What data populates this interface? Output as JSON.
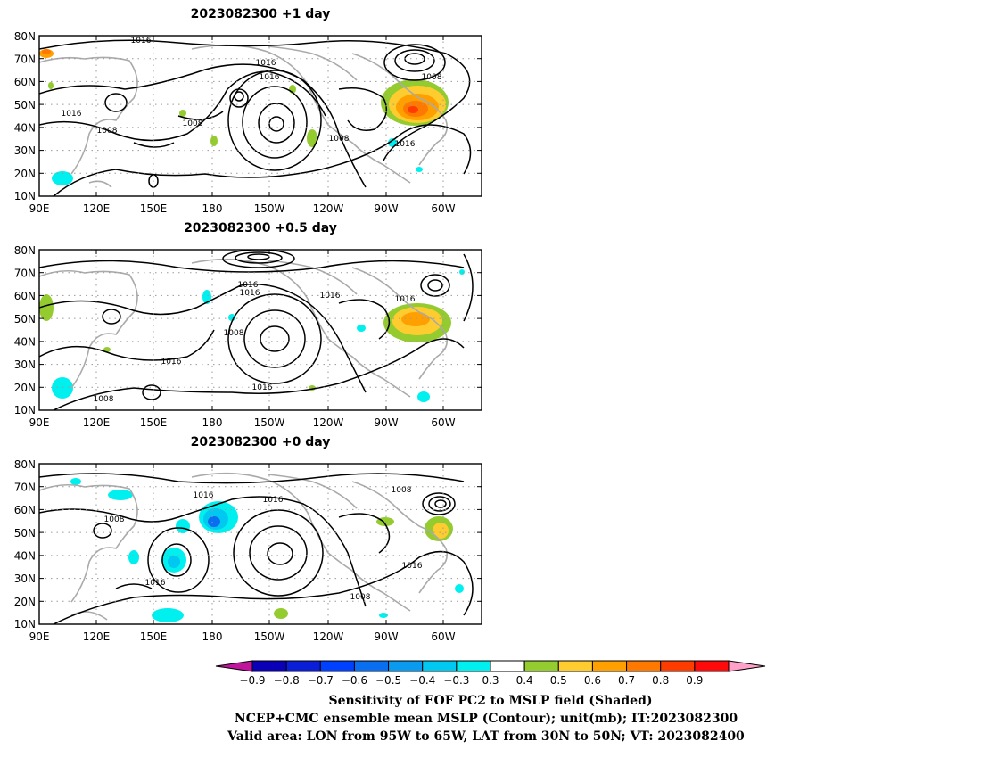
{
  "panels": [
    {
      "title": "2023082300  +1 day",
      "lat_ticks": [
        "80N",
        "70N",
        "60N",
        "50N",
        "40N",
        "30N",
        "20N",
        "10N"
      ],
      "lon_ticks": [
        "90E",
        "120E",
        "150E",
        "180",
        "150W",
        "120W",
        "90W",
        "60W"
      ],
      "contour_labels": [
        "1016",
        "1016",
        "1016",
        "1016",
        "1008",
        "1008",
        "1008",
        "1008",
        "1016"
      ]
    },
    {
      "title": "2023082300  +0.5 day",
      "lat_ticks": [
        "80N",
        "70N",
        "60N",
        "50N",
        "40N",
        "30N",
        "20N",
        "10N"
      ],
      "lon_ticks": [
        "90E",
        "120E",
        "150E",
        "180",
        "150W",
        "120W",
        "90W",
        "60W"
      ],
      "contour_labels": [
        "1016",
        "1016",
        "1016",
        "1016",
        "1008",
        "1016",
        "1016",
        "1008"
      ]
    },
    {
      "title": "2023082300  +0 day",
      "lat_ticks": [
        "80N",
        "70N",
        "60N",
        "50N",
        "40N",
        "30N",
        "20N",
        "10N"
      ],
      "lon_ticks": [
        "90E",
        "120E",
        "150E",
        "180",
        "150W",
        "120W",
        "90W",
        "60W"
      ],
      "contour_labels": [
        "1016",
        "1016",
        "1008",
        "1008",
        "1016",
        "1016",
        "1008"
      ]
    }
  ],
  "colorbar": {
    "labels": [
      "−0.9",
      "−0.8",
      "−0.7",
      "−0.6",
      "−0.5",
      "−0.4",
      "−0.3",
      "0.3",
      "0.4",
      "0.5",
      "0.6",
      "0.7",
      "0.8",
      "0.9"
    ],
    "colors": [
      "#c0149c",
      "#0a00b8",
      "#0a1ed8",
      "#0040ff",
      "#0a6ef0",
      "#0a9af0",
      "#00c8f0",
      "#00f0f0",
      "#ffffff",
      "#94cc30",
      "#ffcc30",
      "#ffa000",
      "#ff7800",
      "#ff3c00",
      "#ff0a0a",
      "#ffa0c8"
    ]
  },
  "footer": [
    "Sensitivity of EOF PC2 to MSLP field (Shaded)",
    "NCEP+CMC ensemble mean MSLP (Contour); unit(mb); IT:2023082300",
    "Valid area: LON from 95W to 65W, LAT from 30N to 50N; VT: 2023082400"
  ]
}
